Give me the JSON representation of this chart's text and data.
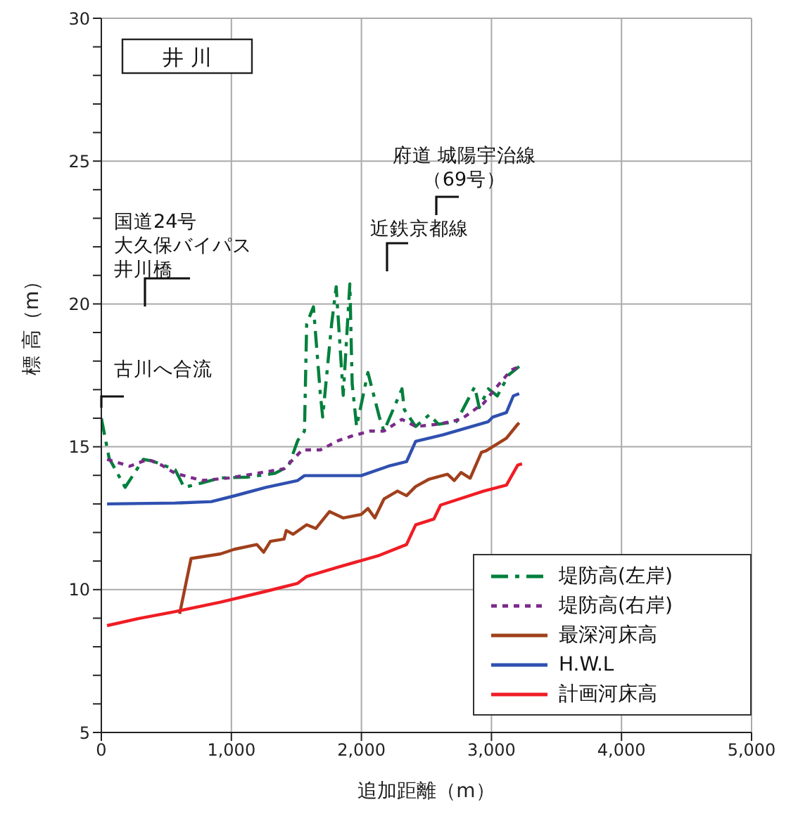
{
  "chart_data": {
    "type": "line",
    "title": "井 川",
    "xlabel": "追加距離（m）",
    "ylabel": "標 高（m）",
    "xlim": [
      0,
      5000
    ],
    "xticks": [
      0,
      {
        "value": 1000,
        "label": "1,000"
      },
      {
        "value": 2000,
        "label": "2,000"
      },
      {
        "value": 3000,
        "label": "3,000"
      },
      {
        "value": 4000,
        "label": "4,000"
      },
      {
        "value": 5000,
        "label": "5,000"
      }
    ],
    "ylim": [
      5,
      30
    ],
    "yticks": [
      5,
      {
        "value": 6,
        "label": null
      },
      {
        "value": 7,
        "label": null
      },
      {
        "value": 8,
        "label": null
      },
      {
        "value": 9,
        "label": null
      },
      10,
      {
        "value": 11,
        "label": null
      },
      {
        "value": 12,
        "label": null
      },
      {
        "value": 13,
        "label": null
      },
      {
        "value": 14,
        "label": null
      },
      15,
      {
        "value": 16,
        "label": null
      },
      {
        "value": 17,
        "label": null
      },
      {
        "value": 18,
        "label": null
      },
      {
        "value": 19,
        "label": null
      },
      20,
      {
        "value": 21,
        "label": null
      },
      {
        "value": 22,
        "label": null
      },
      {
        "value": 23,
        "label": null
      },
      {
        "value": 24,
        "label": null
      },
      25,
      {
        "value": 26,
        "label": null
      },
      {
        "value": 27,
        "label": null
      },
      {
        "value": 28,
        "label": null
      },
      {
        "value": 29,
        "label": null
      },
      30
    ],
    "grid": true,
    "legend": "bottom right",
    "marker": "none",
    "annotations": [
      "古川へ合流",
      "国道24号大久保バイパス井川橋",
      "近鉄京都線",
      "府道 城陽宇治線（69号）"
    ],
    "series": [
      {
        "name": "堤防高(左岸)",
        "color": "#00803c",
        "line_style": "dashed",
        "x": [
          0,
          60,
          183,
          323,
          393,
          567,
          637,
          777,
          916,
          1126,
          1335,
          1440,
          1510,
          1562,
          1579,
          1631,
          1684,
          1702,
          1771,
          1806,
          1860,
          1911,
          1929,
          1963,
          2050,
          2138,
          2173,
          2312,
          2330,
          2417,
          2522,
          2592,
          2731,
          2871,
          2906,
          2976,
          3045,
          3133,
          3213
        ],
        "values": [
          16.0,
          14.6,
          13.58,
          14.56,
          14.5,
          14.2,
          13.58,
          13.74,
          13.91,
          13.94,
          14.07,
          14.32,
          15.22,
          15.55,
          19.3,
          19.9,
          16.86,
          16.04,
          19.3,
          20.6,
          16.8,
          20.7,
          17.2,
          15.71,
          17.6,
          16.04,
          15.55,
          17.03,
          16.3,
          15.71,
          16.12,
          15.79,
          15.88,
          17.1,
          16.37,
          17.03,
          16.78,
          17.52,
          17.81
        ]
      },
      {
        "name": "堤防高(右岸)",
        "color": "#7b2a8a",
        "line_style": "dotted",
        "x": [
          44,
          218,
          358,
          463,
          567,
          777,
          986,
          1196,
          1405,
          1545,
          1684,
          1824,
          1929,
          2068,
          2173,
          2312,
          2417,
          2592,
          2766,
          2941,
          3028,
          3150,
          3213
        ],
        "values": [
          14.56,
          14.32,
          14.56,
          14.36,
          14.07,
          13.82,
          13.91,
          14.07,
          14.23,
          14.89,
          14.89,
          15.22,
          15.38,
          15.55,
          15.55,
          15.96,
          15.71,
          15.79,
          15.96,
          16.53,
          17.03,
          17.68,
          17.81
        ]
      },
      {
        "name": "最深河床高",
        "color": "#a0401c",
        "line_style": "solid",
        "x": [
          602,
          690,
          916,
          1021,
          1196,
          1248,
          1300,
          1405,
          1422,
          1475,
          1579,
          1649,
          1754,
          1859,
          1998,
          2050,
          2103,
          2173,
          2277,
          2347,
          2417,
          2522,
          2662,
          2714,
          2766,
          2836,
          2923,
          2958,
          3115,
          3202,
          3213
        ],
        "values": [
          9.15,
          11.09,
          11.25,
          11.41,
          11.58,
          11.31,
          11.69,
          11.77,
          12.07,
          11.94,
          12.27,
          12.14,
          12.73,
          12.51,
          12.63,
          12.84,
          12.51,
          13.17,
          13.45,
          13.29,
          13.61,
          13.87,
          14.04,
          13.82,
          14.1,
          13.9,
          14.81,
          14.86,
          15.3,
          15.79,
          15.84
        ]
      },
      {
        "name": "H.W.L",
        "color": "#2f50b0",
        "line_style": "solid",
        "x": [
          44,
          567,
          846,
          1021,
          1265,
          1510,
          1562,
          1998,
          2207,
          2347,
          2417,
          2626,
          2976,
          3010,
          3115,
          3168,
          3213
        ],
        "values": [
          13.0,
          13.03,
          13.08,
          13.28,
          13.58,
          13.82,
          13.99,
          13.99,
          14.32,
          14.48,
          15.19,
          15.42,
          15.88,
          16.04,
          16.2,
          16.78,
          16.86
        ]
      },
      {
        "name": "計画河床高",
        "color": "#f01c24",
        "line_style": "solid",
        "x": [
          44,
          288,
          567,
          916,
          1265,
          1510,
          1579,
          1824,
          2138,
          2347,
          2417,
          2557,
          2609,
          2940,
          3115,
          3202,
          3235
        ],
        "values": [
          8.74,
          8.99,
          9.23,
          9.56,
          9.94,
          10.22,
          10.46,
          10.79,
          11.2,
          11.58,
          12.27,
          12.47,
          12.96,
          13.45,
          13.66,
          14.36,
          14.4
        ]
      }
    ]
  }
}
